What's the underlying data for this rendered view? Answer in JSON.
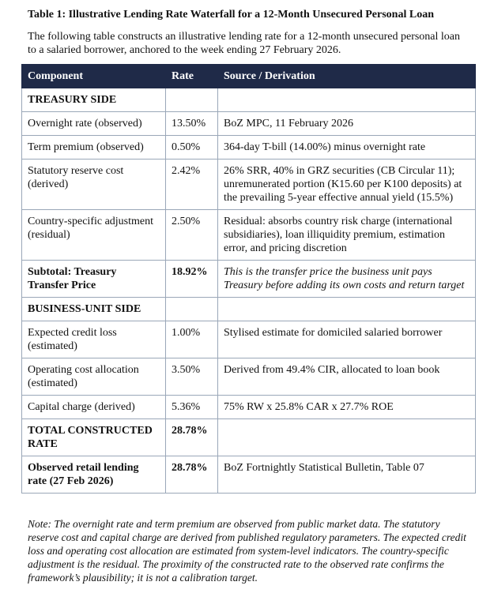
{
  "title": "Table 1: Illustrative Lending Rate Waterfall for a 12-Month Unsecured Personal Loan",
  "intro": "The following table constructs an illustrative lending rate for a 12-month unsecured personal loan to a salaried borrower, anchored to the week ending 27 February 2026.",
  "table": {
    "header": [
      "Component",
      "Rate",
      "Source / Derivation"
    ],
    "rows": [
      [
        "TREASURY SIDE"
      ],
      [
        "Overnight rate (observed)",
        "13.50%",
        "BoZ MPC, 11 February 2026"
      ],
      [
        "Term premium (observed)",
        "0.50%",
        "364-day T-bill (14.00%) minus overnight rate"
      ],
      [
        "Statutory reserve cost (derived)",
        "2.42%",
        "26% SRR, 40% in GRZ securities (CB Circular 11); unremunerated portion (K15.60 per K100 deposits) at the prevailing 5-year effective annual yield (15.5%)"
      ],
      [
        "Country-specific adjustment (residual)",
        "2.50%",
        "Residual: absorbs country risk charge (international subsidiaries), loan illiquidity premium, estimation error, and pricing discretion"
      ],
      [
        "Subtotal: Treasury Transfer Price",
        "18.92%",
        "This is the transfer price the business unit pays Treasury before adding its own costs and return target"
      ],
      [
        "BUSINESS-UNIT SIDE"
      ],
      [
        "Expected credit loss (estimated)",
        "1.00%",
        "Stylised estimate for domiciled salaried borrower"
      ],
      [
        "Operating cost allocation (estimated)",
        "3.50%",
        "Derived from 49.4% CIR, allocated to loan book"
      ],
      [
        "Capital charge (derived)",
        "5.36%",
        "75% RW x 25.8% CAR x 27.7% ROE"
      ],
      [
        "TOTAL CONSTRUCTED RATE",
        "28.78%"
      ],
      [
        "Observed retail lending rate (27 Feb 2026)",
        "28.78%",
        "BoZ Fortnightly Statistical Bulletin, Table 07"
      ]
    ]
  },
  "note": "Note: The overnight rate and term premium are observed from public market data. The statutory reserve cost and capital charge are derived from published regulatory parameters. The expected credit loss and operating cost allocation are estimated from system-level indicators. The country-specific adjustment is the residual. The proximity of the constructed rate to the observed rate confirms the framework’s plausibility; it is not a calibration target."
}
